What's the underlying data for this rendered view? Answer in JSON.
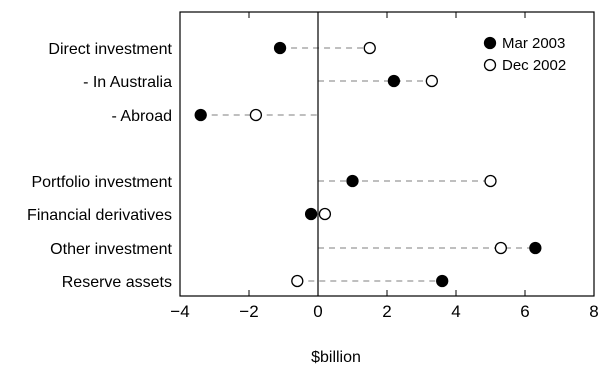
{
  "chart_data": {
    "type": "dot",
    "categories": [
      "Direct investment",
      "- In Australia",
      "- Abroad",
      "Portfolio investment",
      "Financial derivatives",
      "Other investment",
      "Reserve assets"
    ],
    "series": [
      {
        "name": "Mar 2003",
        "marker": "filled-circle",
        "color": "#000000",
        "values": [
          -1.1,
          2.2,
          -3.4,
          1.0,
          -0.2,
          6.3,
          3.6
        ]
      },
      {
        "name": "Dec 2002",
        "marker": "open-circle",
        "color": "#000000",
        "values": [
          1.5,
          3.3,
          -1.8,
          5.0,
          0.2,
          5.3,
          -0.6
        ]
      }
    ],
    "xlabel": "$billion",
    "ylabel": "",
    "title": "",
    "xlim": [
      -4,
      8
    ],
    "xticks": [
      -4,
      -2,
      0,
      2,
      4,
      6,
      8
    ],
    "xtick_labels": [
      "−4",
      "−2",
      "0",
      "2",
      "4",
      "6",
      "8"
    ],
    "zero_line": true,
    "connector_style": "dashed",
    "connector_color": "#999999",
    "grid": false,
    "legend_position": "top-right"
  }
}
